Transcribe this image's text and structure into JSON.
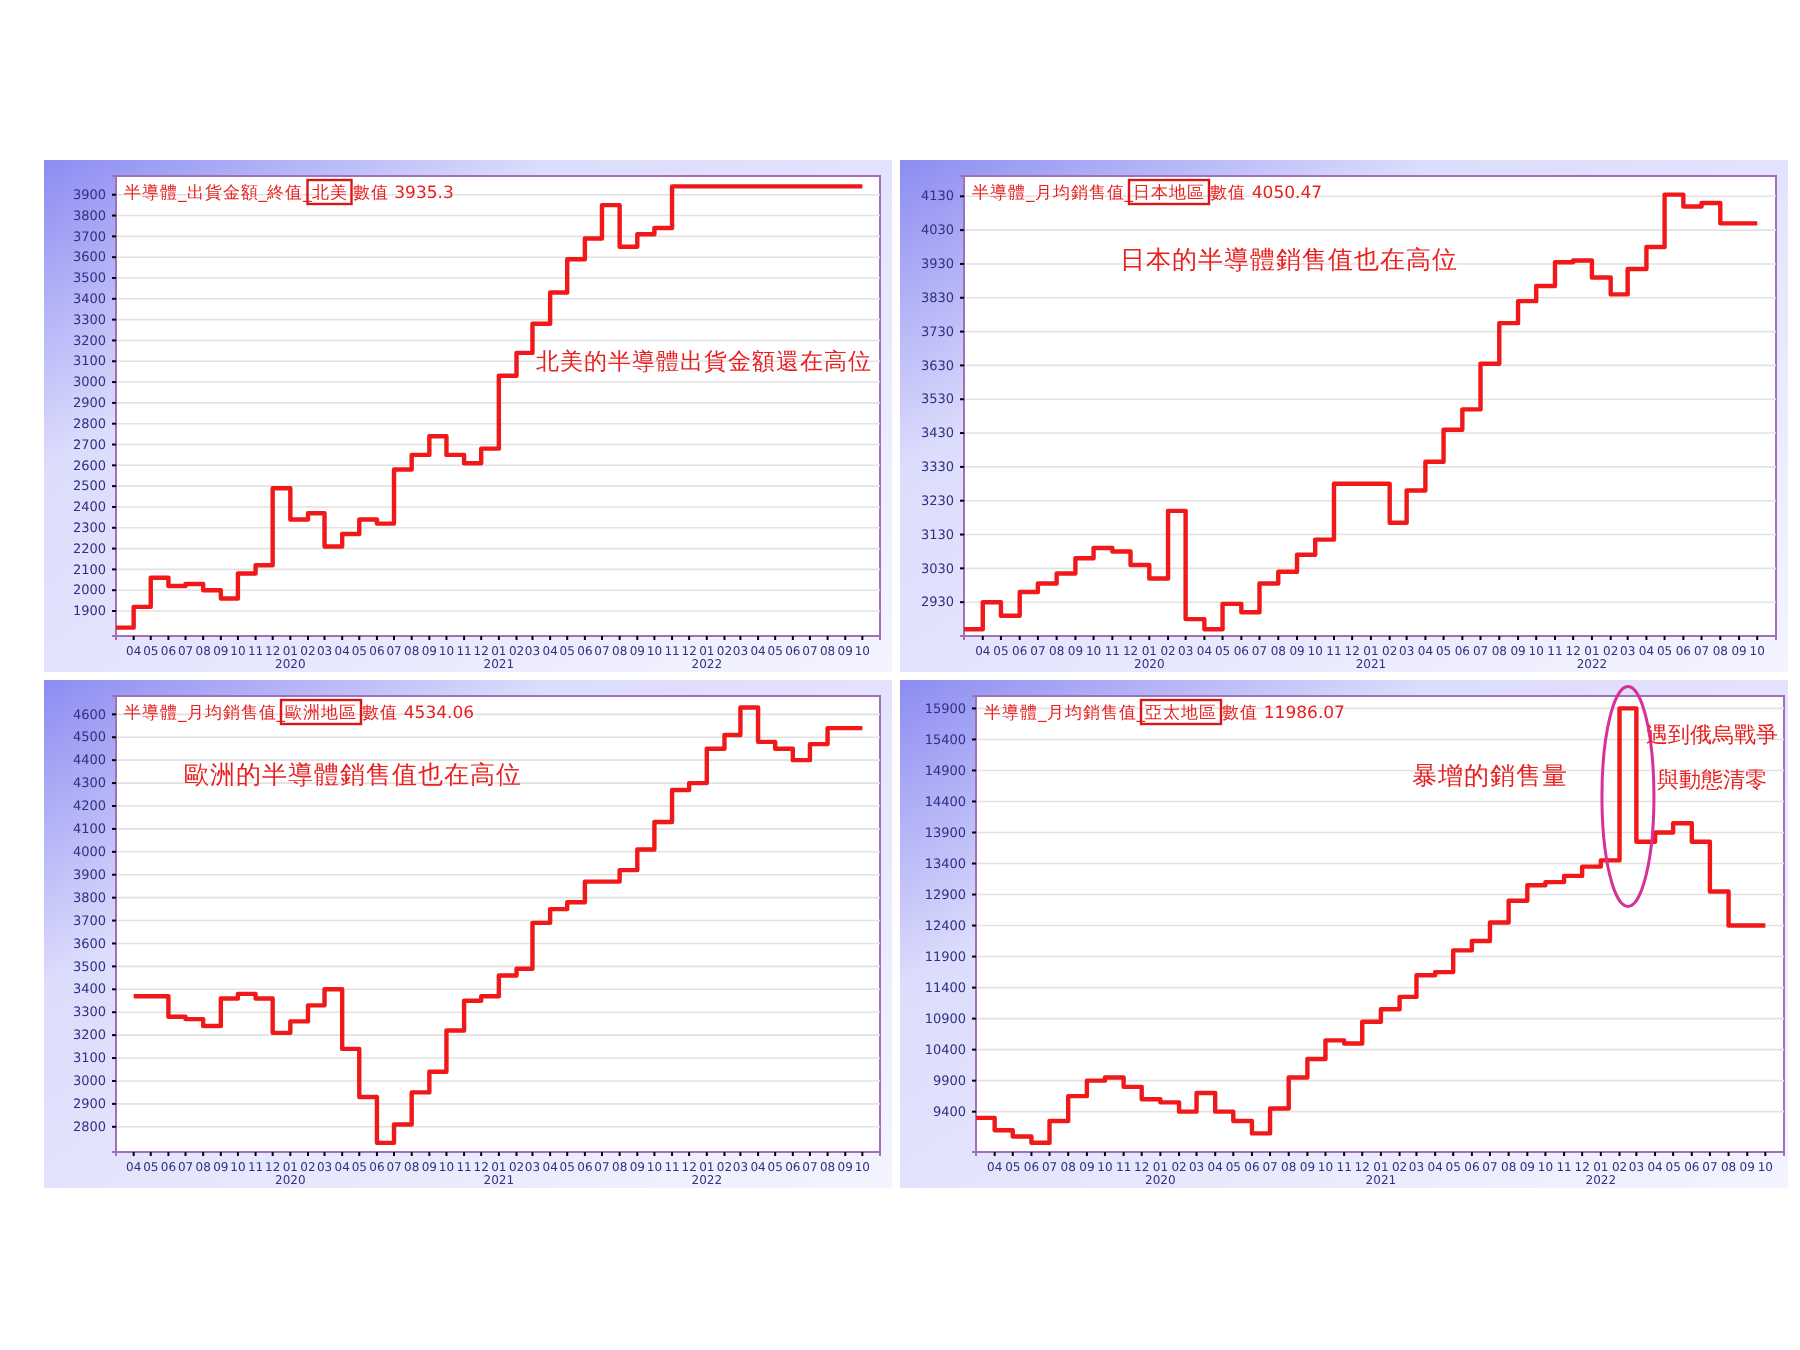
{
  "chart_data": [
    {
      "type": "step",
      "title": "半導體_出貨金額_終值_北美 數值 3935.3",
      "annotations": [
        "北美的半導體出貨金額還在高位"
      ],
      "grid": "y",
      "x": [
        "2019-03",
        "2019-04",
        "2019-05",
        "2019-06",
        "2019-07",
        "2019-08",
        "2019-09",
        "2019-10",
        "2019-11",
        "2019-12",
        "2020-01",
        "2020-02",
        "2020-03",
        "2020-04",
        "2020-05",
        "2020-06",
        "2020-07",
        "2020-08",
        "2020-09",
        "2020-10",
        "2020-11",
        "2020-12",
        "2021-01",
        "2021-02",
        "2021-03",
        "2021-04",
        "2021-05",
        "2021-06",
        "2021-07",
        "2021-08",
        "2021-09",
        "2021-10",
        "2021-11",
        "2021-12",
        "2022-01",
        "2022-02",
        "2022-03",
        "2022-04",
        "2022-05",
        "2022-06",
        "2022-07",
        "2022-08",
        "2022-09",
        "2022-10"
      ],
      "series": [
        {
          "color": "#f01818",
          "values": [
            1820,
            1920,
            2060,
            2020,
            2030,
            2000,
            1960,
            2080,
            2120,
            2490,
            2340,
            2370,
            2210,
            2270,
            2340,
            2320,
            2580,
            2650,
            2740,
            2650,
            2610,
            2680,
            3030,
            3140,
            3280,
            3430,
            3590,
            3690,
            3850,
            3650,
            3710,
            3740,
            3940,
            3940,
            3940,
            3940,
            3940,
            3940,
            3940,
            3940,
            3940,
            3940,
            3940,
            3940
          ]
        }
      ],
      "xlim": [
        "2019-03",
        "2022-11"
      ],
      "ylim": [
        1780,
        3990
      ],
      "yticks": [
        1900,
        2000,
        2100,
        2200,
        2300,
        2400,
        2500,
        2600,
        2700,
        2800,
        2900,
        3000,
        3100,
        3200,
        3300,
        3400,
        3500,
        3600,
        3700,
        3800,
        3900
      ],
      "xticks": [
        {
          "value": "2019-04",
          "label": "04"
        },
        {
          "value": "2019-05",
          "label": "05"
        },
        {
          "value": "2019-06",
          "label": "06"
        },
        {
          "value": "2019-07",
          "label": "07"
        },
        {
          "value": "2019-08",
          "label": "08"
        },
        {
          "value": "2019-09",
          "label": "09"
        },
        {
          "value": "2019-10",
          "label": "10"
        },
        {
          "value": "2019-11",
          "label": "11"
        },
        {
          "value": "2019-12",
          "label": "12"
        },
        {
          "value": "2020-01",
          "label": "01\n2020"
        },
        {
          "value": "2020-02",
          "label": "02"
        },
        {
          "value": "2020-03",
          "label": "03"
        },
        {
          "value": "2020-04",
          "label": "04"
        },
        {
          "value": "2020-05",
          "label": "05"
        },
        {
          "value": "2020-06",
          "label": "06"
        },
        {
          "value": "2020-07",
          "label": "07"
        },
        {
          "value": "2020-08",
          "label": "08"
        },
        {
          "value": "2020-09",
          "label": "09"
        },
        {
          "value": "2020-10",
          "label": "10"
        },
        {
          "value": "2020-11",
          "label": "11"
        },
        {
          "value": "2020-12",
          "label": "12"
        },
        {
          "value": "2021-01",
          "label": "01\n2021"
        },
        {
          "value": "2021-02",
          "label": "02"
        },
        {
          "value": "2021-03",
          "label": "03"
        },
        {
          "value": "2021-04",
          "label": "04"
        },
        {
          "value": "2021-05",
          "label": "05"
        },
        {
          "value": "2021-06",
          "label": "06"
        },
        {
          "value": "2021-07",
          "label": "07"
        },
        {
          "value": "2021-08",
          "label": "08"
        },
        {
          "value": "2021-09",
          "label": "09"
        },
        {
          "value": "2021-10",
          "label": "10"
        },
        {
          "value": "2021-11",
          "label": "11"
        },
        {
          "value": "2021-12",
          "label": "12"
        },
        {
          "value": "2022-01",
          "label": "01\n2022"
        },
        {
          "value": "2022-02",
          "label": "02"
        },
        {
          "value": "2022-03",
          "label": "03"
        },
        {
          "value": "2022-04",
          "label": "04"
        },
        {
          "value": "2022-05",
          "label": "05"
        },
        {
          "value": "2022-06",
          "label": "06"
        },
        {
          "value": "2022-07",
          "label": "07"
        },
        {
          "value": "2022-08",
          "label": "08"
        },
        {
          "value": "2022-09",
          "label": "09"
        },
        {
          "value": "2022-10",
          "label": "10"
        }
      ]
    },
    {
      "type": "step",
      "title": "半導體_月均銷售值_日本地區 數值 4050.47",
      "annotations": [
        "日本的半導體銷售值也在高位"
      ],
      "grid": "y",
      "x": [
        "2019-03",
        "2019-04",
        "2019-05",
        "2019-06",
        "2019-07",
        "2019-08",
        "2019-09",
        "2019-10",
        "2019-11",
        "2019-12",
        "2020-01",
        "2020-02",
        "2020-03",
        "2020-04",
        "2020-05",
        "2020-06",
        "2020-07",
        "2020-08",
        "2020-09",
        "2020-10",
        "2020-11",
        "2020-12",
        "2021-01",
        "2021-02",
        "2021-03",
        "2021-04",
        "2021-05",
        "2021-06",
        "2021-07",
        "2021-08",
        "2021-09",
        "2021-10",
        "2021-11",
        "2021-12",
        "2022-01",
        "2022-02",
        "2022-03",
        "2022-04",
        "2022-05",
        "2022-06",
        "2022-07",
        "2022-08",
        "2022-09",
        "2022-10"
      ],
      "series": [
        {
          "color": "#f01818",
          "values": [
            2850,
            2930,
            2890,
            2960,
            2985,
            3015,
            3060,
            3090,
            3080,
            3040,
            3000,
            3200,
            2880,
            2850,
            2925,
            2900,
            2985,
            3020,
            3070,
            3115,
            3280,
            3280,
            3280,
            3165,
            3260,
            3345,
            3440,
            3500,
            3635,
            3755,
            3820,
            3865,
            3935,
            3940,
            3890,
            3840,
            3915,
            3980,
            4135,
            4100,
            4110,
            4050,
            4050,
            4050
          ]
        }
      ],
      "xlim": [
        "2019-03",
        "2022-11"
      ],
      "ylim": [
        2830,
        4190
      ],
      "yticks": [
        2930,
        3030,
        3130,
        3230,
        3330,
        3430,
        3530,
        3630,
        3730,
        3830,
        3930,
        4030,
        4130
      ],
      "xticks": [
        {
          "value": "2019-04",
          "label": "04"
        },
        {
          "value": "2019-05",
          "label": "05"
        },
        {
          "value": "2019-06",
          "label": "06"
        },
        {
          "value": "2019-07",
          "label": "07"
        },
        {
          "value": "2019-08",
          "label": "08"
        },
        {
          "value": "2019-09",
          "label": "09"
        },
        {
          "value": "2019-10",
          "label": "10"
        },
        {
          "value": "2019-11",
          "label": "11"
        },
        {
          "value": "2019-12",
          "label": "12"
        },
        {
          "value": "2020-01",
          "label": "01\n2020"
        },
        {
          "value": "2020-02",
          "label": "02"
        },
        {
          "value": "2020-03",
          "label": "03"
        },
        {
          "value": "2020-04",
          "label": "04"
        },
        {
          "value": "2020-05",
          "label": "05"
        },
        {
          "value": "2020-06",
          "label": "06"
        },
        {
          "value": "2020-07",
          "label": "07"
        },
        {
          "value": "2020-08",
          "label": "08"
        },
        {
          "value": "2020-09",
          "label": "09"
        },
        {
          "value": "2020-10",
          "label": "10"
        },
        {
          "value": "2020-11",
          "label": "11"
        },
        {
          "value": "2020-12",
          "label": "12"
        },
        {
          "value": "2021-01",
          "label": "01\n2021"
        },
        {
          "value": "2021-02",
          "label": "02"
        },
        {
          "value": "2021-03",
          "label": "03"
        },
        {
          "value": "2021-04",
          "label": "04"
        },
        {
          "value": "2021-05",
          "label": "05"
        },
        {
          "value": "2021-06",
          "label": "06"
        },
        {
          "value": "2021-07",
          "label": "07"
        },
        {
          "value": "2021-08",
          "label": "08"
        },
        {
          "value": "2021-09",
          "label": "09"
        },
        {
          "value": "2021-10",
          "label": "10"
        },
        {
          "value": "2021-11",
          "label": "11"
        },
        {
          "value": "2021-12",
          "label": "12"
        },
        {
          "value": "2022-01",
          "label": "01\n2022"
        },
        {
          "value": "2022-02",
          "label": "02"
        },
        {
          "value": "2022-03",
          "label": "03"
        },
        {
          "value": "2022-04",
          "label": "04"
        },
        {
          "value": "2022-05",
          "label": "05"
        },
        {
          "value": "2022-06",
          "label": "06"
        },
        {
          "value": "2022-07",
          "label": "07"
        },
        {
          "value": "2022-08",
          "label": "08"
        },
        {
          "value": "2022-09",
          "label": "09"
        },
        {
          "value": "2022-10",
          "label": "10"
        }
      ]
    },
    {
      "type": "step",
      "title": "半導體_月均銷售值_歐洲地區 數值 4534.06",
      "annotations": [
        "歐洲的半導體銷售值也在高位"
      ],
      "grid": "y",
      "x": [
        "2019-04",
        "2019-05",
        "2019-06",
        "2019-07",
        "2019-08",
        "2019-09",
        "2019-10",
        "2019-11",
        "2019-12",
        "2020-01",
        "2020-02",
        "2020-03",
        "2020-04",
        "2020-05",
        "2020-06",
        "2020-07",
        "2020-08",
        "2020-09",
        "2020-10",
        "2020-11",
        "2020-12",
        "2021-01",
        "2021-02",
        "2021-03",
        "2021-04",
        "2021-05",
        "2021-06",
        "2021-07",
        "2021-08",
        "2021-09",
        "2021-10",
        "2021-11",
        "2021-12",
        "2022-01",
        "2022-02",
        "2022-03",
        "2022-04",
        "2022-05",
        "2022-06",
        "2022-07",
        "2022-08",
        "2022-09",
        "2022-10"
      ],
      "series": [
        {
          "color": "#f01818",
          "values": [
            3370,
            3370,
            3280,
            3270,
            3240,
            3360,
            3380,
            3360,
            3210,
            3260,
            3330,
            3400,
            3140,
            2930,
            2730,
            2810,
            2950,
            3040,
            3220,
            3350,
            3370,
            3460,
            3490,
            3690,
            3750,
            3780,
            3870,
            3870,
            3920,
            4010,
            4130,
            4270,
            4300,
            4450,
            4510,
            4630,
            4480,
            4450,
            4400,
            4470,
            4540,
            4540,
            4540
          ]
        }
      ],
      "xlim": [
        "2019-03",
        "2022-11"
      ],
      "ylim": [
        2690,
        4680
      ],
      "yticks": [
        2800,
        2900,
        3000,
        3100,
        3200,
        3300,
        3400,
        3500,
        3600,
        3700,
        3800,
        3900,
        4000,
        4100,
        4200,
        4300,
        4400,
        4500,
        4600
      ],
      "xticks": [
        {
          "value": "2019-04",
          "label": "04"
        },
        {
          "value": "2019-05",
          "label": "05"
        },
        {
          "value": "2019-06",
          "label": "06"
        },
        {
          "value": "2019-07",
          "label": "07"
        },
        {
          "value": "2019-08",
          "label": "08"
        },
        {
          "value": "2019-09",
          "label": "09"
        },
        {
          "value": "2019-10",
          "label": "10"
        },
        {
          "value": "2019-11",
          "label": "11"
        },
        {
          "value": "2019-12",
          "label": "12"
        },
        {
          "value": "2020-01",
          "label": "01\n2020"
        },
        {
          "value": "2020-02",
          "label": "02"
        },
        {
          "value": "2020-03",
          "label": "03"
        },
        {
          "value": "2020-04",
          "label": "04"
        },
        {
          "value": "2020-05",
          "label": "05"
        },
        {
          "value": "2020-06",
          "label": "06"
        },
        {
          "value": "2020-07",
          "label": "07"
        },
        {
          "value": "2020-08",
          "label": "08"
        },
        {
          "value": "2020-09",
          "label": "09"
        },
        {
          "value": "2020-10",
          "label": "10"
        },
        {
          "value": "2020-11",
          "label": "11"
        },
        {
          "value": "2020-12",
          "label": "12"
        },
        {
          "value": "2021-01",
          "label": "01\n2021"
        },
        {
          "value": "2021-02",
          "label": "02"
        },
        {
          "value": "2021-03",
          "label": "03"
        },
        {
          "value": "2021-04",
          "label": "04"
        },
        {
          "value": "2021-05",
          "label": "05"
        },
        {
          "value": "2021-06",
          "label": "06"
        },
        {
          "value": "2021-07",
          "label": "07"
        },
        {
          "value": "2021-08",
          "label": "08"
        },
        {
          "value": "2021-09",
          "label": "09"
        },
        {
          "value": "2021-10",
          "label": "10"
        },
        {
          "value": "2021-11",
          "label": "11"
        },
        {
          "value": "2021-12",
          "label": "12"
        },
        {
          "value": "2022-01",
          "label": "01\n2022"
        },
        {
          "value": "2022-02",
          "label": "02"
        },
        {
          "value": "2022-03",
          "label": "03"
        },
        {
          "value": "2022-04",
          "label": "04"
        },
        {
          "value": "2022-05",
          "label": "05"
        },
        {
          "value": "2022-06",
          "label": "06"
        },
        {
          "value": "2022-07",
          "label": "07"
        },
        {
          "value": "2022-08",
          "label": "08"
        },
        {
          "value": "2022-09",
          "label": "09"
        },
        {
          "value": "2022-10",
          "label": "10"
        }
      ]
    },
    {
      "type": "step",
      "title": "半導體_月均銷售值_亞太地區 數值 11986.07",
      "annotations": [
        {
          "text": "暴增的銷售量",
          "x": "2022-02",
          "y": 15900
        },
        "遇到俄烏戰爭",
        "與動態清零"
      ],
      "grid": "y",
      "x": [
        "2019-03",
        "2019-04",
        "2019-05",
        "2019-06",
        "2019-07",
        "2019-08",
        "2019-09",
        "2019-10",
        "2019-11",
        "2019-12",
        "2020-01",
        "2020-02",
        "2020-03",
        "2020-04",
        "2020-05",
        "2020-06",
        "2020-07",
        "2020-08",
        "2020-09",
        "2020-10",
        "2020-11",
        "2020-12",
        "2021-01",
        "2021-02",
        "2021-03",
        "2021-04",
        "2021-05",
        "2021-06",
        "2021-07",
        "2021-08",
        "2021-09",
        "2021-10",
        "2021-11",
        "2021-12",
        "2022-01",
        "2022-02",
        "2022-03",
        "2022-04",
        "2022-05",
        "2022-06",
        "2022-07",
        "2022-08",
        "2022-09",
        "2022-10"
      ],
      "series": [
        {
          "color": "#f01818",
          "values": [
            9300,
            9100,
            9000,
            8900,
            9250,
            9650,
            9900,
            9950,
            9800,
            9600,
            9550,
            9400,
            9700,
            9400,
            9250,
            9050,
            9450,
            9950,
            10250,
            10550,
            10500,
            10850,
            11050,
            11250,
            11600,
            11650,
            12000,
            12150,
            12450,
            12800,
            13050,
            13100,
            13200,
            13350,
            13450,
            15900,
            13750,
            13900,
            14050,
            13750,
            12950,
            12400,
            12400,
            12400
          ]
        }
      ],
      "xlim": [
        "2019-03",
        "2022-11"
      ],
      "ylim": [
        8750,
        16100
      ],
      "yticks": [
        9400,
        9900,
        10400,
        10900,
        11400,
        11900,
        12400,
        12900,
        13400,
        13900,
        14400,
        14900,
        15400,
        15900
      ],
      "xticks": [
        {
          "value": "2019-04",
          "label": "04"
        },
        {
          "value": "2019-05",
          "label": "05"
        },
        {
          "value": "2019-06",
          "label": "06"
        },
        {
          "value": "2019-07",
          "label": "07"
        },
        {
          "value": "2019-08",
          "label": "08"
        },
        {
          "value": "2019-09",
          "label": "09"
        },
        {
          "value": "2019-10",
          "label": "10"
        },
        {
          "value": "2019-11",
          "label": "11"
        },
        {
          "value": "2019-12",
          "label": "12"
        },
        {
          "value": "2020-01",
          "label": "01\n2020"
        },
        {
          "value": "2020-02",
          "label": "02"
        },
        {
          "value": "2020-03",
          "label": "03"
        },
        {
          "value": "2020-04",
          "label": "04"
        },
        {
          "value": "2020-05",
          "label": "05"
        },
        {
          "value": "2020-06",
          "label": "06"
        },
        {
          "value": "2020-07",
          "label": "07"
        },
        {
          "value": "2020-08",
          "label": "08"
        },
        {
          "value": "2020-09",
          "label": "09"
        },
        {
          "value": "2020-10",
          "label": "10"
        },
        {
          "value": "2020-11",
          "label": "11"
        },
        {
          "value": "2020-12",
          "label": "12"
        },
        {
          "value": "2021-01",
          "label": "01\n2021"
        },
        {
          "value": "2021-02",
          "label": "02"
        },
        {
          "value": "2021-03",
          "label": "03"
        },
        {
          "value": "2021-04",
          "label": "04"
        },
        {
          "value": "2021-05",
          "label": "05"
        },
        {
          "value": "2021-06",
          "label": "06"
        },
        {
          "value": "2021-07",
          "label": "07"
        },
        {
          "value": "2021-08",
          "label": "08"
        },
        {
          "value": "2021-09",
          "label": "09"
        },
        {
          "value": "2021-10",
          "label": "10"
        },
        {
          "value": "2021-11",
          "label": "11"
        },
        {
          "value": "2021-12",
          "label": "12"
        },
        {
          "value": "2022-01",
          "label": "01\n2022"
        },
        {
          "value": "2022-02",
          "label": "02"
        },
        {
          "value": "2022-03",
          "label": "03"
        },
        {
          "value": "2022-04",
          "label": "04"
        },
        {
          "value": "2022-05",
          "label": "05"
        },
        {
          "value": "2022-06",
          "label": "06"
        },
        {
          "value": "2022-07",
          "label": "07"
        },
        {
          "value": "2022-08",
          "label": "08"
        },
        {
          "value": "2022-09",
          "label": "09"
        },
        {
          "value": "2022-10",
          "label": "10"
        }
      ]
    }
  ]
}
